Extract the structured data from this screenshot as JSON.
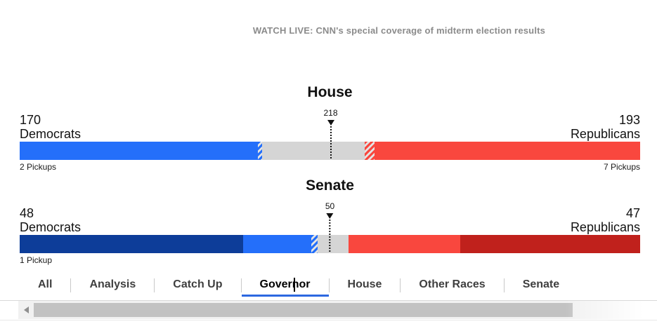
{
  "banner": {
    "text": "WATCH LIVE: CNN's special coverage of midterm election results"
  },
  "colors": {
    "dem_bright": "#246ffa",
    "dem_dark": "#0d3d99",
    "rep_light": "#f9473e",
    "rep_dark": "#c0211c",
    "undecided": "#d5d5d5",
    "tab_underline": "#2c68e0",
    "banner_text": "#8b8b8b"
  },
  "house": {
    "title": "House",
    "majority_label": "218",
    "dem_count": "170",
    "dem_label": "Democrats",
    "dem_pickups": "2 Pickups",
    "rep_count": "193",
    "rep_label": "Republicans",
    "rep_pickups": "7 Pickups"
  },
  "senate": {
    "title": "Senate",
    "majority_label": "50",
    "dem_count": "48",
    "dem_label": "Democrats",
    "dem_pickups": "1 Pickup",
    "rep_count": "47",
    "rep_label": "Republicans"
  },
  "tabs": [
    {
      "label": "All"
    },
    {
      "label": "Analysis"
    },
    {
      "label": "Catch Up"
    },
    {
      "label": "Governor",
      "active": true
    },
    {
      "label": "House"
    },
    {
      "label": "Other Races"
    },
    {
      "label": "Senate"
    }
  ],
  "chart_data": [
    {
      "type": "bar",
      "title": "House",
      "total_seats": 435,
      "majority_marker": 218,
      "dem_total": 170,
      "rep_total": 193,
      "undecided": 72,
      "dem_pickups": 2,
      "rep_pickups": 7,
      "segments": [
        {
          "name": "democrats-won",
          "seats": 167,
          "color": "#246ffa"
        },
        {
          "name": "democrats-leading",
          "seats": 3,
          "color": "#246ffa",
          "hatch": true
        },
        {
          "name": "undecided",
          "seats": 72,
          "color": "#d5d5d5"
        },
        {
          "name": "republicans-leading",
          "seats": 7,
          "color": "#f9473e",
          "hatch": true
        },
        {
          "name": "republicans-won",
          "seats": 186,
          "color": "#f9473e"
        }
      ]
    },
    {
      "type": "bar",
      "title": "Senate",
      "total_seats": 100,
      "majority_marker": 50,
      "dem_total": 48,
      "rep_total": 47,
      "undecided": 5,
      "dem_pickups": 1,
      "segments": [
        {
          "name": "democrats-holdover",
          "seats": 36,
          "color": "#0d3d99"
        },
        {
          "name": "democrats-won",
          "seats": 11,
          "color": "#246ffa"
        },
        {
          "name": "democrats-leading",
          "seats": 1,
          "color": "#246ffa",
          "hatch": true
        },
        {
          "name": "undecided",
          "seats": 5,
          "color": "#d5d5d5"
        },
        {
          "name": "republicans-won",
          "seats": 18,
          "color": "#f9473e"
        },
        {
          "name": "republicans-holdover",
          "seats": 29,
          "color": "#c0211c"
        }
      ]
    }
  ]
}
